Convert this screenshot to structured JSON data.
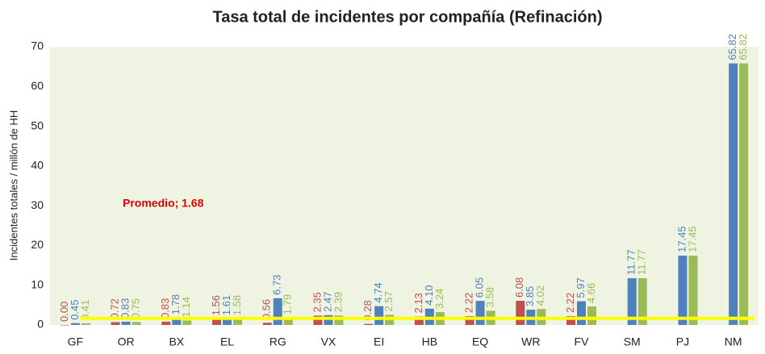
{
  "chart_data": {
    "type": "bar",
    "title": "Tasa total de incidentes por compañía (Refinación)",
    "y_label": "Incidentes totales / millón de HH",
    "categories": [
      "GF",
      "OR",
      "BX",
      "EL",
      "RG",
      "VX",
      "EI",
      "HB",
      "EQ",
      "WR",
      "FV",
      "SM",
      "PJ",
      "NM"
    ],
    "series": [
      {
        "color": "#c0504d",
        "values": [
          0,
          0.72,
          0.83,
          1.56,
          0.56,
          2.35,
          0.28,
          2.13,
          2.22,
          6.08,
          2.22,
          null,
          null,
          null
        ],
        "value_labels": [
          "0.00",
          "0.72",
          "0.83",
          "1.56",
          "0.56",
          "2.35",
          "0.28",
          "2.13",
          "2.22",
          "6.08",
          "2.22",
          null,
          null,
          null
        ]
      },
      {
        "color": "#4f81bd",
        "values": [
          0.45,
          0.83,
          1.78,
          1.61,
          6.73,
          2.47,
          4.74,
          4.1,
          6.05,
          3.85,
          5.97,
          11.77,
          17.45,
          65.82
        ],
        "value_labels": [
          "0.45",
          "0.83",
          "1.78",
          "1.61",
          "6.73",
          "2.47",
          "4.74",
          "4.10",
          "6.05",
          "3.85",
          "5.97",
          "11.77",
          "17.45",
          "65.82"
        ]
      },
      {
        "color": "#9bbb59",
        "values": [
          0.41,
          0.75,
          1.14,
          1.58,
          1.79,
          2.39,
          2.57,
          3.24,
          3.58,
          4.02,
          4.66,
          11.77,
          17.45,
          65.82
        ],
        "value_labels": [
          "0.41",
          "0.75",
          "1.14",
          "1.58",
          "1.79",
          "2.39",
          "2.57",
          "3.24",
          "3.58",
          "4.02",
          "4.66",
          "11.77",
          "17.45",
          "65.82"
        ]
      }
    ],
    "average_line": {
      "value": 1.68,
      "label": "Promedio; 1.68",
      "color": "#ffff00",
      "label_color": "#e00000"
    },
    "ylim": [
      0,
      70
    ],
    "yticks": [
      0,
      10,
      20,
      30,
      40,
      50,
      60,
      70
    ],
    "grid": false
  }
}
